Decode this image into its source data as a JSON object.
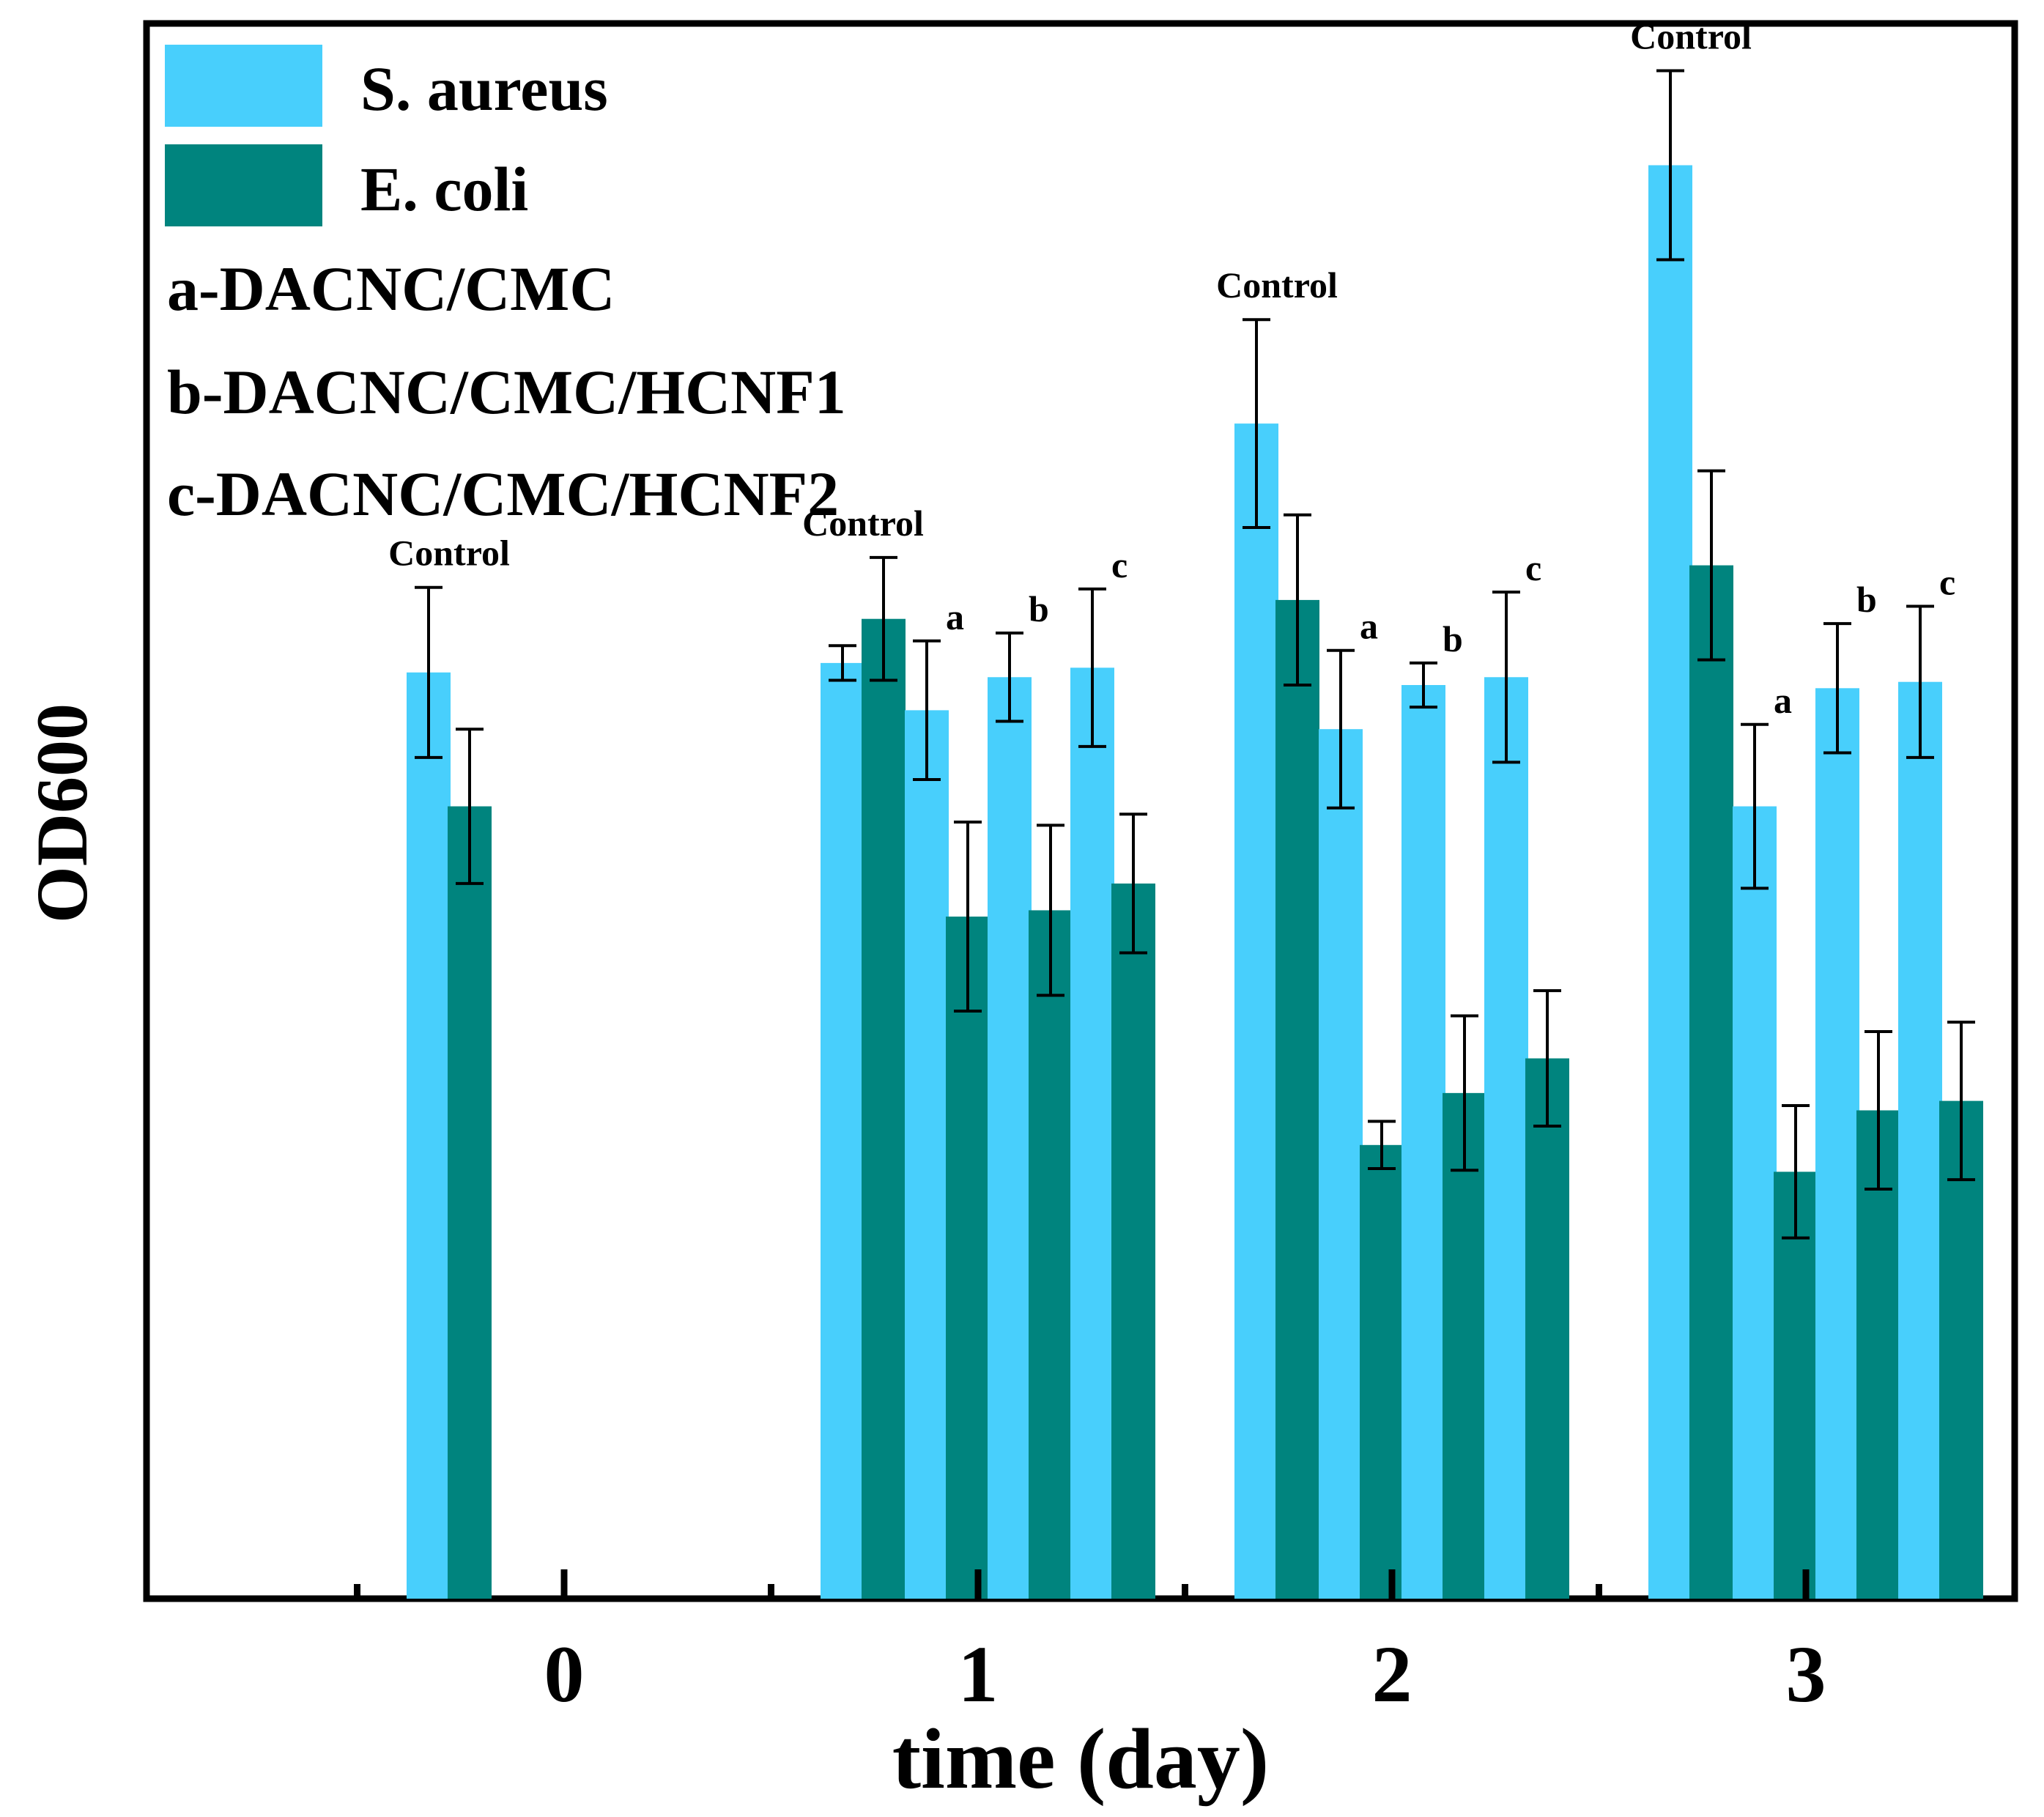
{
  "colors": {
    "s_aureus": "#48CFFC",
    "e_coli": "#00847E",
    "axis": "#000000"
  },
  "chart_data": {
    "type": "bar",
    "title": "",
    "xlabel": "time (day)",
    "ylabel": "OD600",
    "ylim": [
      0,
      1
    ],
    "y_ticks_shown": false,
    "legend_position": "top-left",
    "categories": [
      "0",
      "1",
      "2",
      "3"
    ],
    "series": [
      {
        "name": "S. aureus",
        "color_key": "s_aureus"
      },
      {
        "name": "E. coli",
        "color_key": "e_coli"
      }
    ],
    "samples": [
      {
        "key": "Control",
        "label": "Control"
      },
      {
        "key": "a",
        "label": "a"
      },
      {
        "key": "b",
        "label": "b"
      },
      {
        "key": "c",
        "label": "c"
      }
    ],
    "sample_legend": [
      "a-DACNC/CMC",
      "b-DACNC/CMC/HCNF1",
      "c-DACNC/CMC/HCNF2"
    ],
    "groups": [
      {
        "day": "0",
        "bars": [
          {
            "sample": "Control",
            "series": "S. aureus",
            "value": 0.588,
            "err": 0.054
          },
          {
            "sample": "Control",
            "series": "E. coli",
            "value": 0.503,
            "err": 0.049
          }
        ]
      },
      {
        "day": "1",
        "bars": [
          {
            "sample": "Control",
            "series": "S. aureus",
            "value": 0.594,
            "err": 0.011
          },
          {
            "sample": "Control",
            "series": "E. coli",
            "value": 0.622,
            "err": 0.039
          },
          {
            "sample": "a",
            "series": "S. aureus",
            "value": 0.564,
            "err": 0.044
          },
          {
            "sample": "a",
            "series": "E. coli",
            "value": 0.433,
            "err": 0.06
          },
          {
            "sample": "b",
            "series": "S. aureus",
            "value": 0.585,
            "err": 0.028
          },
          {
            "sample": "b",
            "series": "E. coli",
            "value": 0.437,
            "err": 0.054
          },
          {
            "sample": "c",
            "series": "S. aureus",
            "value": 0.591,
            "err": 0.05
          },
          {
            "sample": "c",
            "series": "E. coli",
            "value": 0.454,
            "err": 0.044
          }
        ]
      },
      {
        "day": "2",
        "bars": [
          {
            "sample": "Control",
            "series": "S. aureus",
            "value": 0.746,
            "err": 0.066
          },
          {
            "sample": "Control",
            "series": "E. coli",
            "value": 0.634,
            "err": 0.054
          },
          {
            "sample": "a",
            "series": "S. aureus",
            "value": 0.552,
            "err": 0.05
          },
          {
            "sample": "a",
            "series": "E. coli",
            "value": 0.288,
            "err": 0.015
          },
          {
            "sample": "b",
            "series": "S. aureus",
            "value": 0.58,
            "err": 0.014
          },
          {
            "sample": "b",
            "series": "E. coli",
            "value": 0.321,
            "err": 0.049
          },
          {
            "sample": "c",
            "series": "S. aureus",
            "value": 0.585,
            "err": 0.054
          },
          {
            "sample": "c",
            "series": "E. coli",
            "value": 0.343,
            "err": 0.043
          }
        ]
      },
      {
        "day": "3",
        "bars": [
          {
            "sample": "Control",
            "series": "S. aureus",
            "value": 0.91,
            "err": 0.06
          },
          {
            "sample": "Control",
            "series": "E. coli",
            "value": 0.656,
            "err": 0.06
          },
          {
            "sample": "a",
            "series": "S. aureus",
            "value": 0.503,
            "err": 0.052
          },
          {
            "sample": "a",
            "series": "E. coli",
            "value": 0.271,
            "err": 0.042
          },
          {
            "sample": "b",
            "series": "S. aureus",
            "value": 0.578,
            "err": 0.041
          },
          {
            "sample": "b",
            "series": "E. coli",
            "value": 0.31,
            "err": 0.05
          },
          {
            "sample": "c",
            "series": "S. aureus",
            "value": 0.582,
            "err": 0.048
          },
          {
            "sample": "c",
            "series": "E. coli",
            "value": 0.316,
            "err": 0.05
          }
        ]
      }
    ]
  }
}
